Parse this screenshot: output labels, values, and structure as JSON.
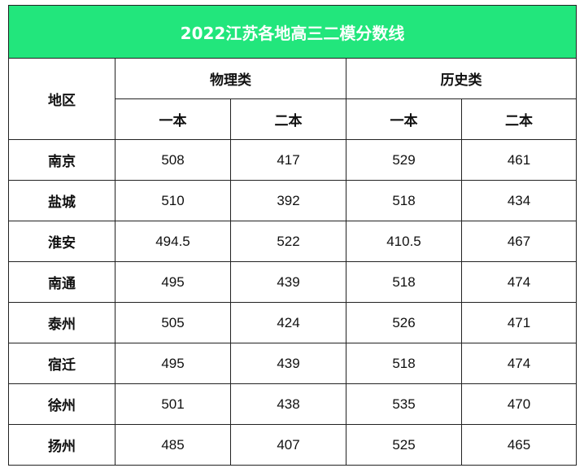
{
  "title": "2022江苏各地高三二模分数线",
  "header": {
    "region": "地区",
    "groups": [
      "物理类",
      "历史类"
    ],
    "subcols": [
      "一本",
      "二本",
      "一本",
      "二本"
    ]
  },
  "rows": [
    {
      "region": "南京",
      "values": [
        "508",
        "417",
        "529",
        "461"
      ]
    },
    {
      "region": "盐城",
      "values": [
        "510",
        "392",
        "518",
        "434"
      ]
    },
    {
      "region": "淮安",
      "values": [
        "494.5",
        "522",
        "410.5",
        "467"
      ]
    },
    {
      "region": "南通",
      "values": [
        "495",
        "439",
        "518",
        "474"
      ]
    },
    {
      "region": "泰州",
      "values": [
        "505",
        "424",
        "526",
        "471"
      ]
    },
    {
      "region": "宿迁",
      "values": [
        "495",
        "439",
        "518",
        "474"
      ]
    },
    {
      "region": "徐州",
      "values": [
        "501",
        "438",
        "535",
        "470"
      ]
    },
    {
      "region": "扬州",
      "values": [
        "485",
        "407",
        "525",
        "465"
      ]
    }
  ],
  "colors": {
    "title_bg": "#22e67c",
    "title_text": "#ffffff",
    "border": "#222222"
  }
}
